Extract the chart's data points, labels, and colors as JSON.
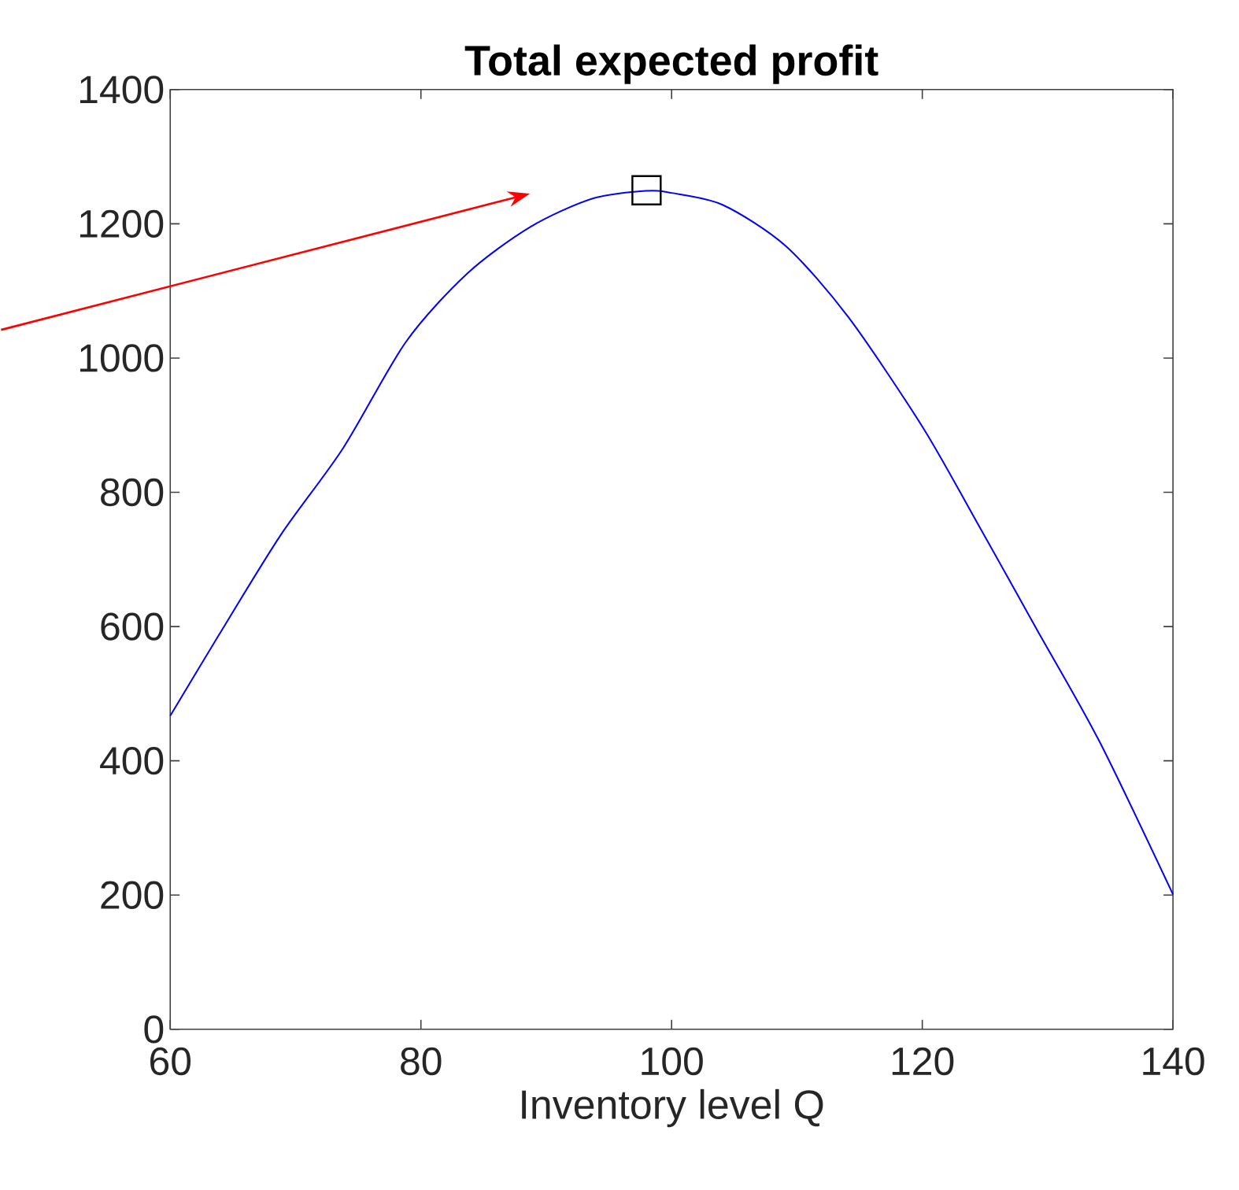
{
  "chart_data": {
    "type": "line",
    "title": "Total expected profit",
    "xlabel": "Inventory level Q",
    "xlim": [
      60,
      140
    ],
    "xticks": [
      60,
      80,
      100,
      120,
      140
    ],
    "ylim": [
      0,
      1400
    ],
    "yticks": [
      0,
      200,
      400,
      600,
      800,
      1000,
      1200,
      1400
    ],
    "series": [
      {
        "color": "#0000ff",
        "marker": "none",
        "x": [
          60,
          63.9,
          68.8,
          73.8,
          78.8,
          83.7,
          88.7,
          93.6,
          97.9,
          100,
          104.1,
          109.1,
          114.1,
          120,
          124.1,
          129.1,
          134.1,
          140
        ],
        "values": [
          467,
          588,
          736,
          866,
          1024,
          1126,
          1195,
          1237,
          1249,
          1246,
          1228,
          1167,
          1061,
          898,
          764,
          597,
          430,
          201
        ]
      },
      {
        "type": "scatter",
        "color": "#000000",
        "marker": "square",
        "x": [
          98
        ],
        "values": [
          1250
        ]
      }
    ]
  }
}
